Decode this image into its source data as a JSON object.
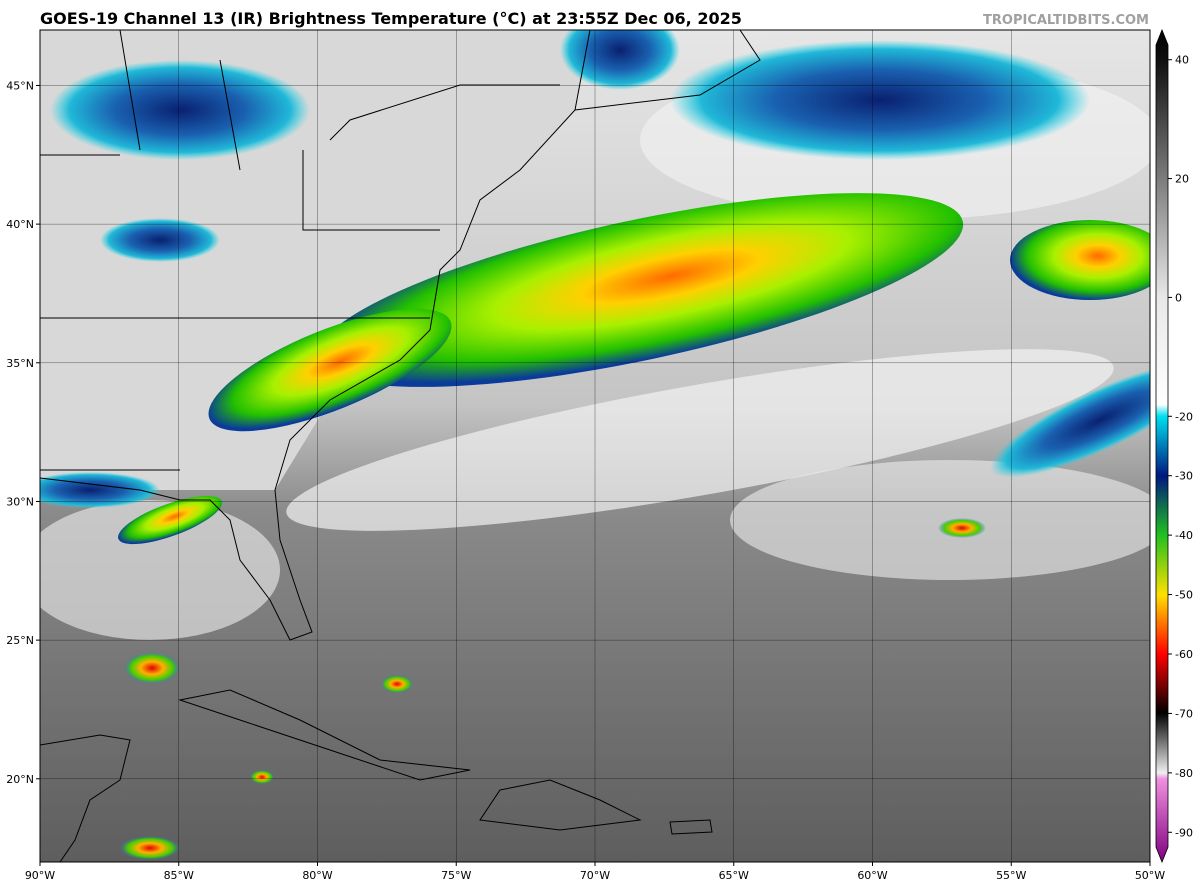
{
  "map": {
    "title": "GOES-19 Channel 13 (IR) Brightness Temperature (°C) at 23:55Z Dec 06, 2025",
    "credit": "TROPICALTIDBITS.COM",
    "xlim": [
      -90,
      -50
    ],
    "ylim": [
      17,
      47
    ],
    "xticks": [
      {
        "value": -90,
        "label": "90°W"
      },
      {
        "value": -85,
        "label": "85°W"
      },
      {
        "value": -80,
        "label": "80°W"
      },
      {
        "value": -75,
        "label": "75°W"
      },
      {
        "value": -70,
        "label": "70°W"
      },
      {
        "value": -65,
        "label": "65°W"
      },
      {
        "value": -60,
        "label": "60°W"
      },
      {
        "value": -55,
        "label": "55°W"
      },
      {
        "value": -50,
        "label": "50°W"
      }
    ],
    "yticks": [
      {
        "value": 20,
        "label": "20°N"
      },
      {
        "value": 25,
        "label": "25°N"
      },
      {
        "value": 30,
        "label": "30°N"
      },
      {
        "value": 35,
        "label": "35°N"
      },
      {
        "value": 40,
        "label": "40°N"
      },
      {
        "value": 45,
        "label": "45°N"
      }
    ]
  },
  "colorbar": {
    "lim": [
      -95,
      45
    ],
    "ticks": [
      40,
      20,
      0,
      -20,
      -30,
      -40,
      -50,
      -60,
      -70,
      -80,
      -90
    ]
  }
}
